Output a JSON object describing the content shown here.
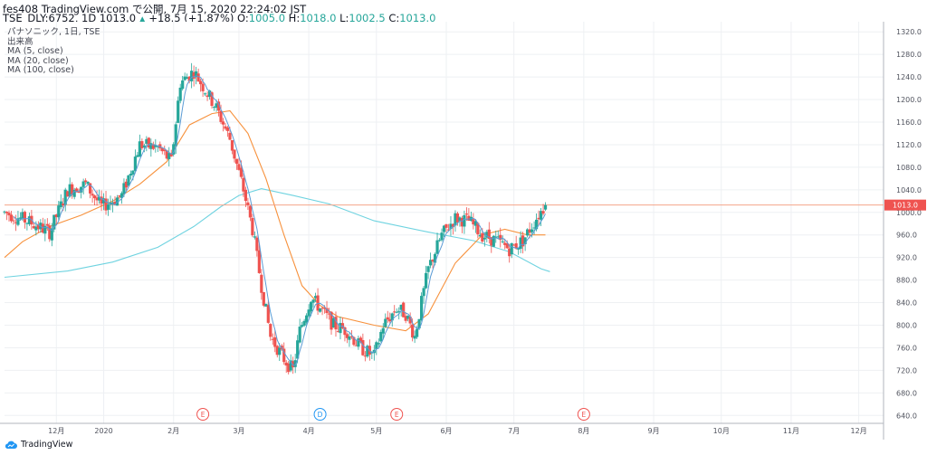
{
  "header": {
    "line1": "fes408 TradingView.com で公開, 7月 15, 2020 22:24:02 JST",
    "symbol": "TSE_DLY:6752, 1D 1013.0",
    "arrow": "▲",
    "change": "+18.5 (+1.87%)",
    "o_label": "O:",
    "o_value": "1005.0",
    "h_label": "H:",
    "h_value": "1018.0",
    "l_label": "L:",
    "l_value": "1002.5",
    "c_label": "C:",
    "c_value": "1013.0"
  },
  "legend": {
    "name": "パナソニック, 1日, TSE",
    "volume": "出来高",
    "ma5": "MA (5, close)",
    "ma20": "MA (20, close)",
    "ma100": "MA (100, close)"
  },
  "footer": {
    "brand": "TradingView"
  },
  "colors": {
    "up": "#26a69a",
    "down": "#ef5350",
    "ma5": "#5b9bd5",
    "ma20": "#f7913c",
    "ma100": "#6fd3e0",
    "last_price_line": "#f4a58a",
    "last_price_bg": "#ef5350"
  },
  "chart_data": {
    "type": "candlestick",
    "y_ticks": [
      "1320.0",
      "1280.0",
      "1240.0",
      "1200.0",
      "1160.0",
      "1120.0",
      "1080.0",
      "1040.0",
      "1000.0",
      "960.0",
      "920.0",
      "880.0",
      "840.0",
      "800.0",
      "760.0",
      "720.0",
      "680.0",
      "640.0"
    ],
    "ylim": [
      626,
      1338
    ],
    "x_ticks": [
      {
        "label": "12月",
        "day": 55
      },
      {
        "label": "2020",
        "day": 76
      },
      {
        "label": "2月",
        "day": 107
      },
      {
        "label": "3月",
        "day": 136
      },
      {
        "label": "4月",
        "day": 167
      },
      {
        "label": "5月",
        "day": 197
      },
      {
        "label": "6月",
        "day": 228
      },
      {
        "label": "7月",
        "day": 258
      },
      {
        "label": "8月",
        "day": 289
      },
      {
        "label": "9月",
        "day": 320
      },
      {
        "label": "10月",
        "day": 350
      },
      {
        "label": "11月",
        "day": 381
      },
      {
        "label": "12月",
        "day": 411
      }
    ],
    "xlim": [
      32,
      422
    ],
    "events": [
      {
        "label": "E",
        "day": 120,
        "kind": "earnings"
      },
      {
        "label": "D",
        "day": 172,
        "kind": "dividend"
      },
      {
        "label": "E",
        "day": 206,
        "kind": "earnings"
      },
      {
        "label": "E",
        "day": 289,
        "kind": "earnings"
      }
    ],
    "last_price": "1013.0",
    "ohlc_seed": {
      "anchors": [
        [
          32,
          1000
        ],
        [
          42,
          985
        ],
        [
          52,
          965
        ],
        [
          60,
          1040
        ],
        [
          68,
          1050
        ],
        [
          75,
          1010
        ],
        [
          84,
          1030
        ],
        [
          92,
          1120
        ],
        [
          100,
          1115
        ],
        [
          106,
          1090
        ],
        [
          110,
          1230
        ],
        [
          116,
          1250
        ],
        [
          126,
          1185
        ],
        [
          132,
          1130
        ],
        [
          138,
          1040
        ],
        [
          142,
          970
        ],
        [
          146,
          870
        ],
        [
          150,
          780
        ],
        [
          156,
          740
        ],
        [
          160,
          720
        ],
        [
          163,
          790
        ],
        [
          168,
          850
        ],
        [
          172,
          830
        ],
        [
          178,
          800
        ],
        [
          184,
          790
        ],
        [
          190,
          760
        ],
        [
          196,
          745
        ],
        [
          200,
          800
        ],
        [
          206,
          830
        ],
        [
          210,
          820
        ],
        [
          214,
          780
        ],
        [
          220,
          900
        ],
        [
          226,
          960
        ],
        [
          232,
          990
        ],
        [
          238,
          985
        ],
        [
          244,
          960
        ],
        [
          250,
          950
        ],
        [
          256,
          935
        ],
        [
          262,
          950
        ],
        [
          268,
          990
        ],
        [
          272,
          1013
        ]
      ]
    },
    "ma100_anchors": [
      [
        32,
        885
      ],
      [
        60,
        896
      ],
      [
        80,
        912
      ],
      [
        100,
        938
      ],
      [
        116,
        975
      ],
      [
        128,
        1010
      ],
      [
        136,
        1030
      ],
      [
        146,
        1042
      ],
      [
        160,
        1030
      ],
      [
        176,
        1015
      ],
      [
        196,
        985
      ],
      [
        220,
        965
      ],
      [
        240,
        950
      ],
      [
        256,
        930
      ],
      [
        270,
        900
      ],
      [
        274,
        895
      ]
    ],
    "ma20_anchors": [
      [
        32,
        920
      ],
      [
        40,
        948
      ],
      [
        52,
        975
      ],
      [
        66,
        995
      ],
      [
        80,
        1020
      ],
      [
        92,
        1050
      ],
      [
        104,
        1090
      ],
      [
        114,
        1155
      ],
      [
        124,
        1175
      ],
      [
        132,
        1180
      ],
      [
        140,
        1140
      ],
      [
        148,
        1060
      ],
      [
        156,
        960
      ],
      [
        164,
        870
      ],
      [
        172,
        835
      ],
      [
        180,
        815
      ],
      [
        196,
        800
      ],
      [
        210,
        790
      ],
      [
        220,
        820
      ],
      [
        232,
        910
      ],
      [
        244,
        960
      ],
      [
        254,
        970
      ],
      [
        264,
        960
      ],
      [
        272,
        960
      ]
    ]
  }
}
